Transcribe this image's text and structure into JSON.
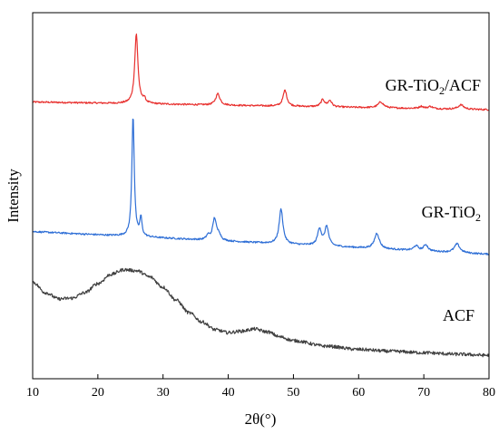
{
  "chart_data": {
    "type": "line",
    "xlabel": "2θ(°)",
    "ylabel": "Intensity",
    "xlim": [
      10,
      80
    ],
    "xticks": [
      10,
      20,
      30,
      40,
      50,
      60,
      70,
      80
    ],
    "yticks_shown": false,
    "grid": false,
    "legend": "none (series labeled inline to the right of each curve)",
    "y_units": "arbitrary intensity units (0 = axis bottom, 100 = axis top)",
    "series": [
      {
        "name": "GR-TiO2/ACF",
        "label_parts": [
          "GR-TiO",
          "2",
          "/ACF"
        ],
        "color": "#e8312f",
        "baseline_start": 75.6,
        "baseline_end": 73.5,
        "peaks": [
          {
            "x": 25.9,
            "h": 19.0,
            "w": 0.3
          },
          {
            "x": 27.1,
            "h": 1.2,
            "w": 0.25
          },
          {
            "x": 38.4,
            "h": 3.1,
            "w": 0.4
          },
          {
            "x": 48.7,
            "h": 4.4,
            "w": 0.35
          },
          {
            "x": 54.5,
            "h": 1.9,
            "w": 0.35
          },
          {
            "x": 55.6,
            "h": 1.7,
            "w": 0.35
          },
          {
            "x": 63.4,
            "h": 1.6,
            "w": 0.5
          },
          {
            "x": 69.6,
            "h": 0.6,
            "w": 0.4
          },
          {
            "x": 71.0,
            "h": 0.6,
            "w": 0.4
          },
          {
            "x": 75.7,
            "h": 1.2,
            "w": 0.5
          }
        ]
      },
      {
        "name": "GR-TiO2",
        "label_parts": [
          "GR-TiO",
          "2"
        ],
        "color": "#2f6fd6",
        "baseline_start": 40.2,
        "baseline_end": 34.0,
        "peaks": [
          {
            "x": 25.4,
            "h": 33.0,
            "w": 0.22
          },
          {
            "x": 26.6,
            "h": 5.0,
            "w": 0.2
          },
          {
            "x": 36.9,
            "h": 1.2,
            "w": 0.3
          },
          {
            "x": 37.9,
            "h": 6.0,
            "w": 0.35
          },
          {
            "x": 38.6,
            "h": 1.5,
            "w": 0.3
          },
          {
            "x": 48.1,
            "h": 9.5,
            "w": 0.35
          },
          {
            "x": 54.0,
            "h": 4.6,
            "w": 0.35
          },
          {
            "x": 55.1,
            "h": 5.3,
            "w": 0.35
          },
          {
            "x": 62.8,
            "h": 4.2,
            "w": 0.45
          },
          {
            "x": 68.8,
            "h": 1.3,
            "w": 0.4
          },
          {
            "x": 70.3,
            "h": 1.7,
            "w": 0.4
          },
          {
            "x": 75.1,
            "h": 2.4,
            "w": 0.5
          }
        ]
      },
      {
        "name": "ACF",
        "label_parts": [
          "ACF"
        ],
        "color": "#404040",
        "profile": [
          [
            10,
            26.4
          ],
          [
            12,
            23.5
          ],
          [
            14,
            21.8
          ],
          [
            16,
            22.0
          ],
          [
            18,
            23.5
          ],
          [
            20,
            26.0
          ],
          [
            22,
            28.5
          ],
          [
            24,
            29.8
          ],
          [
            26,
            29.5
          ],
          [
            28,
            27.8
          ],
          [
            30,
            25.0
          ],
          [
            32,
            21.5
          ],
          [
            34,
            18.0
          ],
          [
            36,
            15.5
          ],
          [
            38,
            13.4
          ],
          [
            40,
            12.6
          ],
          [
            42,
            13.0
          ],
          [
            44,
            13.6
          ],
          [
            46,
            12.8
          ],
          [
            48,
            11.4
          ],
          [
            50,
            10.4
          ],
          [
            55,
            8.9
          ],
          [
            60,
            8.0
          ],
          [
            65,
            7.5
          ],
          [
            70,
            7.1
          ],
          [
            75,
            6.7
          ],
          [
            80,
            6.4
          ]
        ]
      }
    ]
  }
}
